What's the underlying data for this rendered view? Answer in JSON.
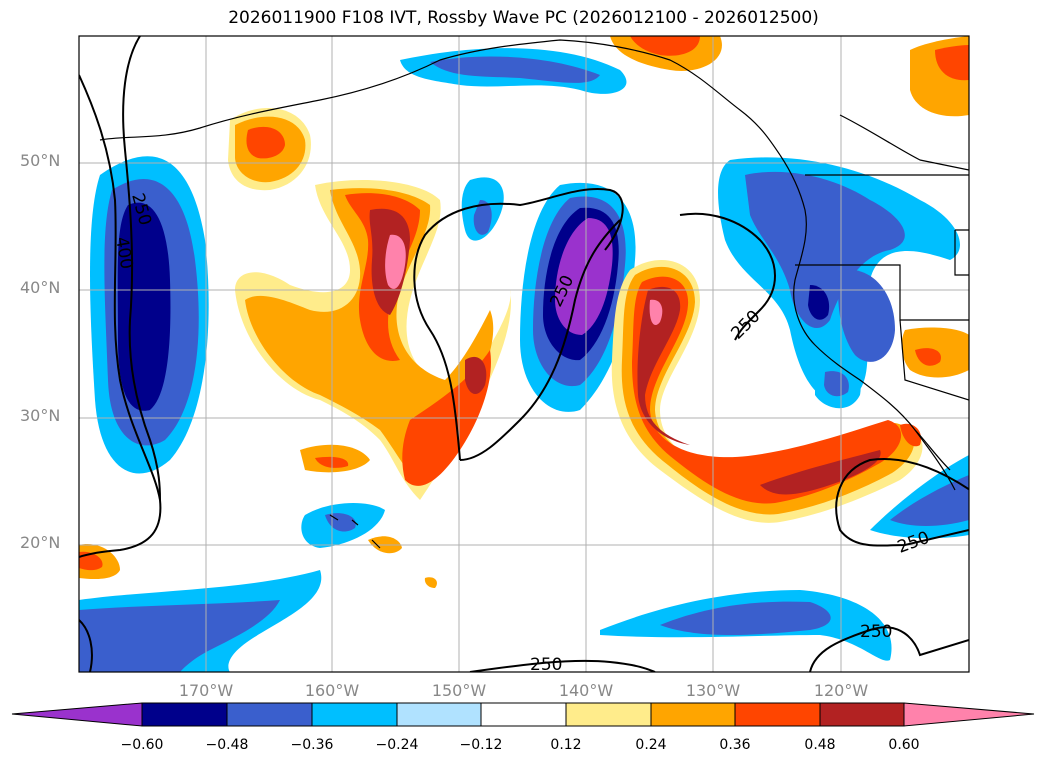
{
  "title": "2026011900 F108 IVT, Rossby Wave PC (2026012100 - 2026012500)",
  "lat_labels": [
    "50°N",
    "40°N",
    "30°N",
    "20°N"
  ],
  "lon_labels": [
    "170°W",
    "160°W",
    "150°W",
    "140°W",
    "130°W",
    "120°W"
  ],
  "contour_labels": [
    "250",
    "400",
    "250",
    "250",
    "250",
    "250",
    "250"
  ],
  "colorbar": {
    "ticks": [
      "−0.60",
      "−0.48",
      "−0.36",
      "−0.24",
      "−0.12",
      "0.12",
      "0.24",
      "0.36",
      "0.48",
      "0.60"
    ],
    "colors": [
      "#9a32cd",
      "#00008b",
      "#3a5fcd",
      "#00bfff",
      "#b0e2ff",
      "#ffffff",
      "#ffec8b",
      "#ffa500",
      "#ff4500",
      "#b22222",
      "#ff82ab"
    ]
  }
}
